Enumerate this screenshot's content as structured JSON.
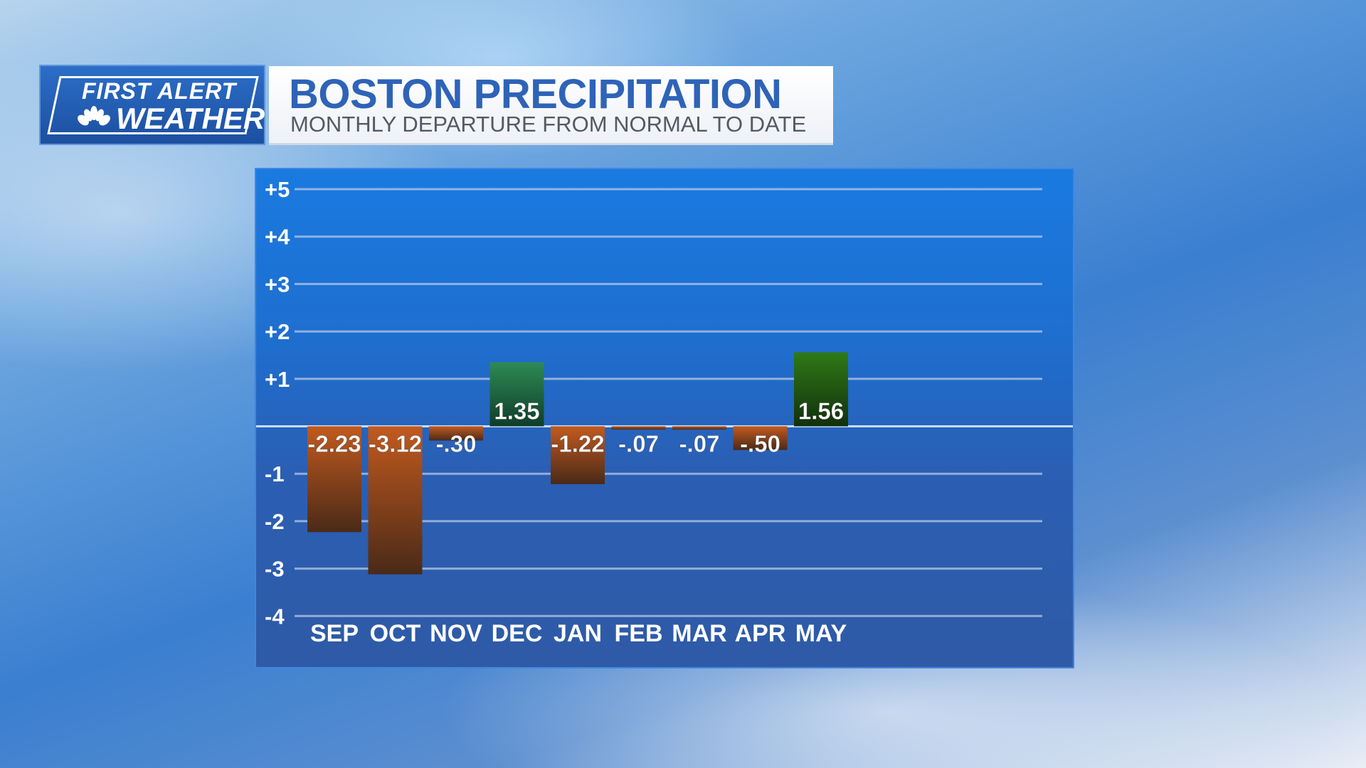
{
  "logo": {
    "line1": "FIRST ALERT",
    "line2": "WEATHER",
    "icon": "peacock-icon"
  },
  "header": {
    "title": "BOSTON PRECIPITATION",
    "subtitle": "MONTHLY DEPARTURE FROM NORMAL TO DATE"
  },
  "colors": {
    "negative": "#c25a1e",
    "positive_dec": "#2e8a55",
    "positive_may": "#2f7a16"
  },
  "chart_data": {
    "type": "bar",
    "title": "BOSTON PRECIPITATION",
    "subtitle": "MONTHLY DEPARTURE FROM NORMAL TO DATE",
    "categories": [
      "SEP",
      "OCT",
      "NOV",
      "DEC",
      "JAN",
      "FEB",
      "MAR",
      "APR",
      "MAY"
    ],
    "values": [
      -2.23,
      -3.12,
      -0.3,
      1.35,
      -1.22,
      -0.07,
      -0.07,
      -0.5,
      1.56
    ],
    "value_labels": [
      "-2.23",
      "-3.12",
      "-.30",
      "1.35",
      "-1.22",
      "-.07",
      "-.07",
      "-.50",
      "1.56"
    ],
    "ylim": [
      -4,
      5
    ],
    "yticks": [
      5,
      4,
      3,
      2,
      1,
      -1,
      -2,
      -3,
      -4
    ],
    "ytick_labels": [
      "+5",
      "+4",
      "+3",
      "+2",
      "+1",
      "-1",
      "-2",
      "-3",
      "-4"
    ],
    "grid": true,
    "legend": "none"
  }
}
